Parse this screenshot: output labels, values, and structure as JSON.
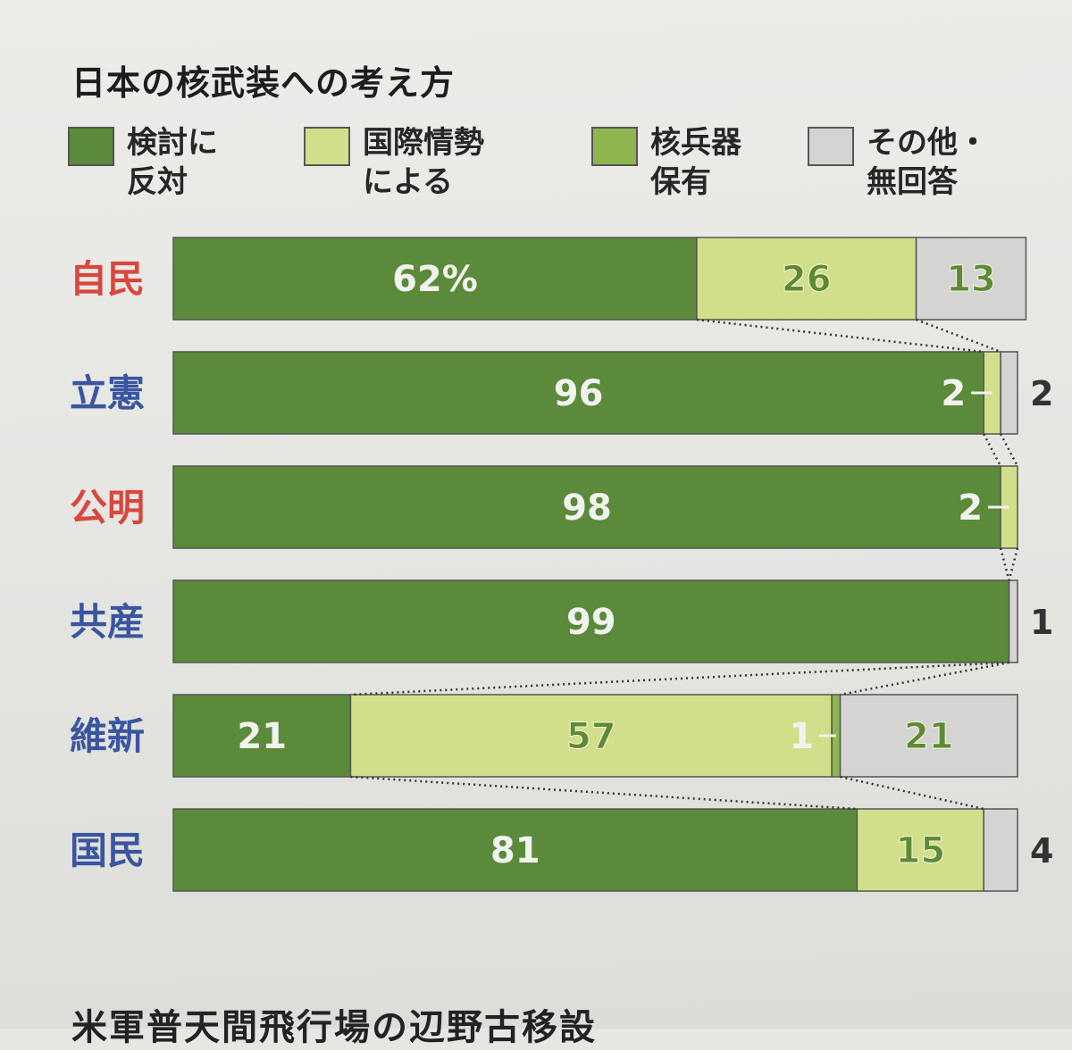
{
  "chart_data": {
    "type": "bar",
    "orientation": "horizontal-stacked",
    "title": "日本の核武装への考え方",
    "series": [
      {
        "name": "検討に\n反対",
        "color": "#5a8a3a"
      },
      {
        "name": "国際情勢\nによる",
        "color": "#d2df8a"
      },
      {
        "name": "核兵器\n保有",
        "color": "#8fb64e"
      },
      {
        "name": "その他・\n無回答",
        "color": "#d4d4d2"
      }
    ],
    "categories": [
      {
        "name": "自民",
        "color": "#d8473d",
        "values": [
          62,
          26,
          0,
          13
        ]
      },
      {
        "name": "立憲",
        "color": "#3a55a0",
        "values": [
          96,
          2,
          0,
          2
        ]
      },
      {
        "name": "公明",
        "color": "#d8473d",
        "values": [
          98,
          2,
          0,
          0
        ]
      },
      {
        "name": "共産",
        "color": "#3a55a0",
        "values": [
          99,
          0,
          0,
          1
        ]
      },
      {
        "name": "維新",
        "color": "#3a55a0",
        "values": [
          21,
          57,
          1,
          21
        ]
      },
      {
        "name": "国民",
        "color": "#3a55a0",
        "values": [
          81,
          15,
          0,
          4
        ]
      }
    ],
    "value_labels": [
      [
        "62%",
        "26",
        "",
        "13"
      ],
      [
        "96",
        "2",
        "",
        "2"
      ],
      [
        "98",
        "2",
        "",
        ""
      ],
      [
        "99",
        "",
        "",
        "1"
      ],
      [
        "21",
        "57",
        "1",
        "21"
      ],
      [
        "81",
        "15",
        "",
        "4"
      ]
    ],
    "xlim": [
      0,
      100
    ],
    "legend": "top"
  },
  "next_article_heading": "米軍普天間飛行場の辺野古移設"
}
